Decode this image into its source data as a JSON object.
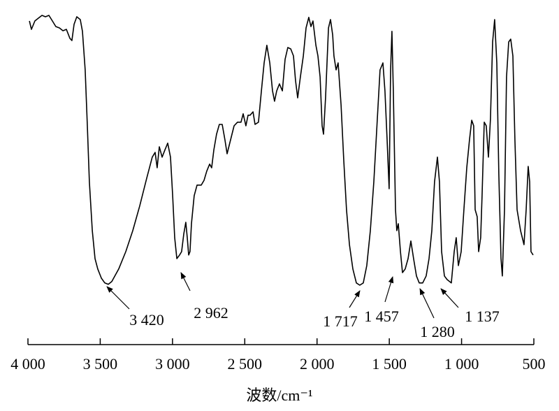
{
  "chart_data": {
    "type": "line",
    "xlabel": "波数/cm⁻¹",
    "xlim": [
      4000,
      500
    ],
    "xticks": [
      {
        "value": 4000,
        "label": "4 000"
      },
      {
        "value": 3500,
        "label": "3 500"
      },
      {
        "value": 3000,
        "label": "3 000"
      },
      {
        "value": 2500,
        "label": "2 500"
      },
      {
        "value": 2000,
        "label": "2 000"
      },
      {
        "value": 1500,
        "label": "1 500"
      },
      {
        "value": 1000,
        "label": "1 000"
      },
      500
    ],
    "ylim": [
      0,
      105
    ],
    "color": "#000000",
    "annotations": [
      "3 420",
      "2 962",
      "1 717",
      "1 457",
      "1 280",
      "1  137"
    ],
    "x": [
      3990,
      3976,
      3952,
      3928,
      3903,
      3879,
      3855,
      3831,
      3807,
      3782,
      3758,
      3734,
      3710,
      3696,
      3681,
      3662,
      3638,
      3623,
      3604,
      3589,
      3575,
      3555,
      3536,
      3517,
      3492,
      3468,
      3444,
      3420,
      3372,
      3323,
      3275,
      3227,
      3178,
      3140,
      3120,
      3106,
      3091,
      3072,
      3053,
      3033,
      3014,
      2999,
      2985,
      2970,
      2951,
      2937,
      2922,
      2908,
      2898,
      2888,
      2879,
      2869,
      2850,
      2830,
      2801,
      2782,
      2763,
      2743,
      2729,
      2714,
      2695,
      2676,
      2656,
      2637,
      2622,
      2598,
      2574,
      2550,
      2526,
      2511,
      2492,
      2477,
      2463,
      2443,
      2429,
      2405,
      2385,
      2366,
      2347,
      2327,
      2308,
      2294,
      2279,
      2260,
      2240,
      2221,
      2202,
      2182,
      2163,
      2149,
      2134,
      2115,
      2095,
      2076,
      2057,
      2042,
      2028,
      2008,
      1994,
      1979,
      1965,
      1955,
      1941,
      1921,
      1907,
      1892,
      1883,
      1868,
      1854,
      1834,
      1815,
      1796,
      1776,
      1752,
      1728,
      1704,
      1680,
      1656,
      1631,
      1607,
      1583,
      1564,
      1544,
      1530,
      1515,
      1501,
      1491,
      1482,
      1472,
      1457,
      1448,
      1438,
      1423,
      1409,
      1390,
      1370,
      1351,
      1332,
      1312,
      1293,
      1269,
      1245,
      1225,
      1206,
      1187,
      1167,
      1153,
      1138,
      1119,
      1100,
      1071,
      1051,
      1037,
      1022,
      1003,
      984,
      964,
      945,
      930,
      916,
      906,
      892,
      882,
      868,
      858,
      843,
      829,
      814,
      800,
      785,
      771,
      756,
      742,
      727,
      718,
      703,
      689,
      674,
      660,
      645,
      631,
      616,
      592,
      568,
      553,
      539,
      529,
      520,
      505
    ],
    "values": [
      100,
      97,
      100,
      101,
      102,
      101.5,
      102,
      100,
      98,
      97.5,
      96.5,
      97,
      93.8,
      93,
      98.8,
      101.5,
      100.5,
      96.3,
      82.5,
      62.5,
      42.5,
      25,
      15,
      11.3,
      8,
      6.3,
      5.8,
      6.8,
      11.3,
      17.5,
      25,
      33.8,
      43.8,
      51.3,
      53,
      47.5,
      55,
      51.3,
      53.8,
      56.3,
      51.3,
      37.5,
      22.5,
      15,
      16.3,
      17.5,
      23.8,
      28,
      22.5,
      16.3,
      17.5,
      27.5,
      37.5,
      41.3,
      41.3,
      43,
      46.3,
      48.8,
      47.5,
      53.8,
      59.5,
      63,
      63,
      57.5,
      52.5,
      57.5,
      62.5,
      63.8,
      63.8,
      66.8,
      62.5,
      66.3,
      66.3,
      67.5,
      63,
      63.8,
      75,
      85,
      91.3,
      85,
      75,
      71.3,
      75,
      77.5,
      75,
      86.3,
      90.5,
      90,
      87.5,
      78.8,
      72.5,
      80,
      87.5,
      97.5,
      101.3,
      98,
      100,
      91.3,
      87.5,
      80,
      62.5,
      59.5,
      72.5,
      97.5,
      100.5,
      95,
      87.5,
      82.5,
      85,
      70,
      50,
      32.5,
      20,
      11.3,
      6.3,
      5.5,
      6.3,
      12.5,
      25,
      42.5,
      65,
      82.5,
      85,
      75,
      57.5,
      40,
      82.5,
      96.3,
      75,
      32.5,
      25,
      27.5,
      17.5,
      10,
      11.3,
      15,
      21.3,
      15,
      8.8,
      6.3,
      6.3,
      8.8,
      15,
      25,
      42.5,
      51.3,
      42.5,
      17.5,
      8.8,
      7.5,
      6.3,
      17.5,
      22.5,
      12.5,
      17.5,
      32.5,
      47.5,
      57.5,
      64.5,
      62.5,
      32.5,
      30,
      17.5,
      22.5,
      37.5,
      63.8,
      62.5,
      51.3,
      65,
      92.5,
      100.5,
      85,
      45,
      15,
      8.8,
      32.5,
      80,
      92.5,
      93.5,
      87.5,
      57.5,
      32.5,
      25,
      20,
      32.5,
      48,
      42.5,
      17.5,
      16.3
    ]
  }
}
